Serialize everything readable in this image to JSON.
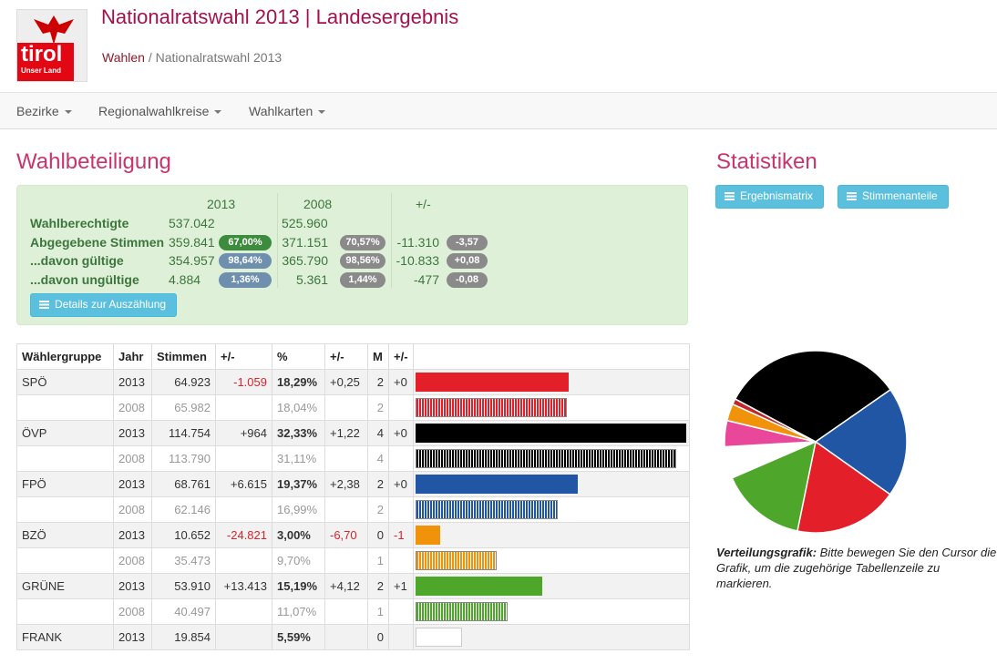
{
  "header": {
    "logo_text": "tirol",
    "logo_sub": "Unser Land",
    "title": "Nationalratswahl 2013 | Landesergebnis",
    "breadcrumb": [
      "Wahlen",
      "Nationalratswahl 2013"
    ]
  },
  "nav": [
    "Bezirke",
    "Regionalwahlkreise",
    "Wahlkarten"
  ],
  "turnout": {
    "heading": "Wahlbeteiligung",
    "columns": [
      "2013",
      "2008",
      "+/-"
    ],
    "rows": [
      {
        "label": "Wahlberechtigte",
        "v2013": "537.042",
        "v2008": "525.960"
      },
      {
        "label": "Abgegebene Stimmen",
        "v2013": "359.841",
        "b2013": "67,00%",
        "v2008": "371.151",
        "b2008": "70,57%",
        "diff": "-11.310",
        "bdiff": "-3,57"
      },
      {
        "label": "...davon gültige",
        "v2013": "354.957",
        "b2013": "98,64%",
        "v2008": "365.790",
        "b2008": "98,56%",
        "diff": "-10.833",
        "bdiff": "+0,08"
      },
      {
        "label": "...davon ungültige",
        "v2013": "4.884",
        "b2013": "1,36%",
        "v2008": "5.361",
        "b2008": "1,44%",
        "diff": "-477",
        "bdiff": "-0,08"
      }
    ],
    "button": "Details zur Auszählung"
  },
  "results": {
    "headers": [
      "Wählergruppe",
      "Jahr",
      "Stimmen",
      "+/-",
      "%",
      "+/-",
      "M",
      "+/-"
    ],
    "rows": [
      {
        "group": "SPÖ",
        "year": "2013",
        "votes": "64.923",
        "diff": "-1.059",
        "pct": "18,29%",
        "pctdiff": "+0,25",
        "seats": "2",
        "seatdiff": "+0",
        "share": 18.29,
        "color": "#e3202a"
      },
      {
        "year": "2008",
        "votes": "65.982",
        "pct": "18,04%",
        "seats": "2",
        "share": 18.04,
        "color": "#e3202a"
      },
      {
        "group": "ÖVP",
        "year": "2013",
        "votes": "114.754",
        "diff": "+964",
        "pct": "32,33%",
        "pctdiff": "+1,22",
        "seats": "4",
        "seatdiff": "+0",
        "share": 32.33,
        "color": "#000000"
      },
      {
        "year": "2008",
        "votes": "113.790",
        "pct": "31,11%",
        "seats": "4",
        "share": 31.11,
        "color": "#000000"
      },
      {
        "group": "FPÖ",
        "year": "2013",
        "votes": "68.761",
        "diff": "+6.615",
        "pct": "19,37%",
        "pctdiff": "+2,38",
        "seats": "2",
        "seatdiff": "+0",
        "share": 19.37,
        "color": "#2156a5"
      },
      {
        "year": "2008",
        "votes": "62.146",
        "pct": "16,99%",
        "seats": "2",
        "share": 16.99,
        "color": "#2156a5"
      },
      {
        "group": "BZÖ",
        "year": "2013",
        "votes": "10.652",
        "diff": "-24.821",
        "pct": "3,00%",
        "pctdiff": "-6,70",
        "seats": "0",
        "seatdiff": "-1",
        "share": 3.0,
        "color": "#f0920a"
      },
      {
        "year": "2008",
        "votes": "35.473",
        "pct": "9,70%",
        "seats": "1",
        "share": 9.7,
        "color": "#f0920a"
      },
      {
        "group": "GRÜNE",
        "year": "2013",
        "votes": "53.910",
        "diff": "+13.413",
        "pct": "15,19%",
        "pctdiff": "+4,12",
        "seats": "2",
        "seatdiff": "+1",
        "share": 15.19,
        "color": "#4ea72a"
      },
      {
        "year": "2008",
        "votes": "40.497",
        "pct": "11,07%",
        "seats": "1",
        "share": 11.07,
        "color": "#4ea72a"
      },
      {
        "group": "FRANK",
        "year": "2013",
        "votes": "19.854",
        "pct": "5,59%",
        "seats": "0",
        "share": 5.59,
        "color": "#ffffff"
      }
    ]
  },
  "stats": {
    "heading": "Statistiken",
    "buttons": [
      "Ergebnismatrix",
      "Stimmenanteile"
    ],
    "pie": [
      {
        "value": 32.33,
        "color": "#000000"
      },
      {
        "value": 19.37,
        "color": "#2156a5"
      },
      {
        "value": 18.29,
        "color": "#e3202a"
      },
      {
        "value": 15.19,
        "color": "#4ea72a"
      },
      {
        "value": 5.59,
        "color": "#ffffff"
      },
      {
        "value": 4.6,
        "color": "#e8479a"
      },
      {
        "value": 3.0,
        "color": "#f0920a"
      },
      {
        "value": 1.0,
        "color": "#c0272d"
      }
    ],
    "caption_bold": "Verteilungsgrafik:",
    "caption": "Bitte bewegen Sie den Cursor die Grafik, um die zugehörige Tabellenzeile zu markieren."
  }
}
